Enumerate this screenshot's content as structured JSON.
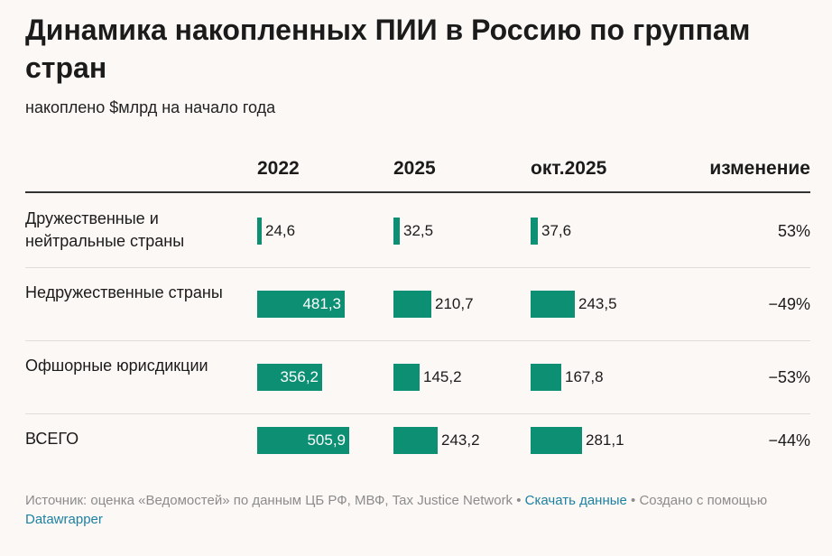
{
  "title": "Динамика накопленных ПИИ в Россию по группам стран",
  "subtitle": "накоплено $млрд на начало года",
  "columns": [
    "2022",
    "2025",
    "окт.2025",
    "изменение"
  ],
  "chart_data": {
    "type": "table",
    "title": "Динамика накопленных ПИИ в Россию по группам стран",
    "subtitle": "накоплено $млрд на начало года",
    "columns": [
      "2022",
      "2025",
      "окт.2025"
    ],
    "change_column": "изменение",
    "value_max": 505.9,
    "rows": [
      {
        "label": "Дружественные и нейтральные страны",
        "values": [
          24.6,
          32.5,
          37.6
        ],
        "labels": [
          "24,6",
          "32,5",
          "37,6"
        ],
        "change": "53%"
      },
      {
        "label": "Недружественные страны",
        "values": [
          481.3,
          210.7,
          243.5
        ],
        "labels": [
          "481,3",
          "210,7",
          "243,5"
        ],
        "change": "−49%"
      },
      {
        "label": "Офшорные юрисдикции",
        "values": [
          356.2,
          145.2,
          167.8
        ],
        "labels": [
          "356,2",
          "145,2",
          "167,8"
        ],
        "change": "−53%"
      },
      {
        "label": "ВСЕГО",
        "values": [
          505.9,
          243.2,
          281.1
        ],
        "labels": [
          "505,9",
          "243,2",
          "281,1"
        ],
        "change": "−44%"
      }
    ]
  },
  "footer": {
    "source": "Источник: оценка «Ведомостей» по данным ЦБ РФ, МВФ, Tax Justice Network",
    "sep1": " • ",
    "download_link": "Скачать данные",
    "sep2": " • ",
    "created_with": "Создано с помощью ",
    "datawrapper_link": "Datawrapper"
  },
  "colors": {
    "bar": "#0d8f73",
    "link": "#1d81a2",
    "background": "#fcf8f5"
  }
}
